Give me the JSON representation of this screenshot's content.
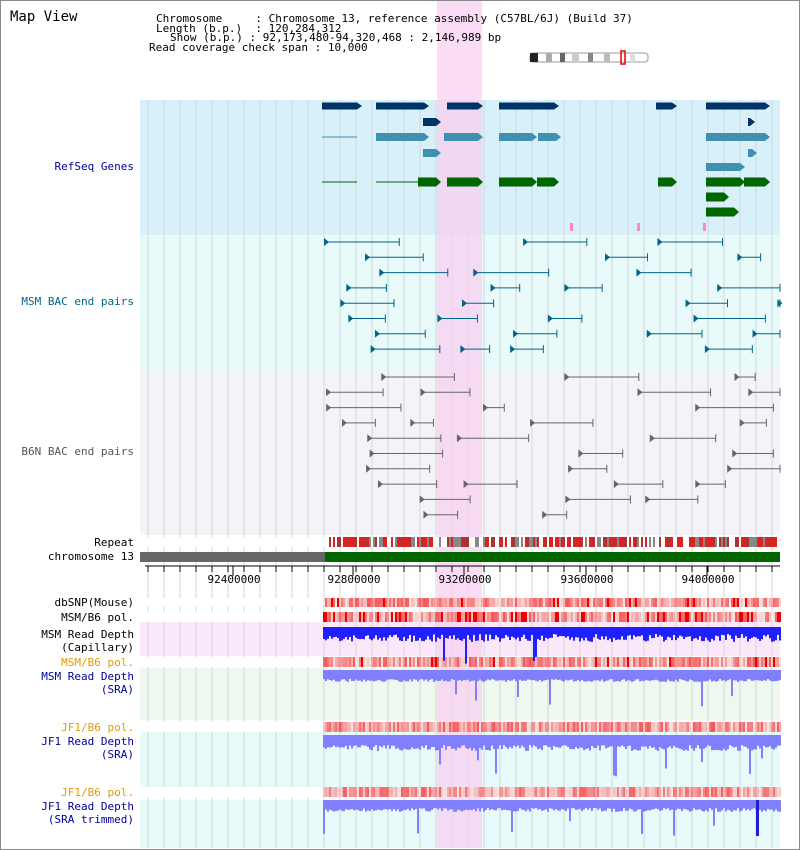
{
  "view_title": "Map View",
  "info": {
    "chromosome_key": "Chromosome",
    "chromosome_value": "Chromosome 13, reference assembly (C57BL/6J) (Build 37)",
    "length_key": "Length (b.p.)",
    "length_value": "120,284,312",
    "show_key": "Show (b.p.)",
    "show_value": "92,173,480-94,320,468 : 2,146,989 bp",
    "coverage_key": "Read coverage check span",
    "coverage_value": "10,000"
  },
  "tracks": {
    "refseq": "RefSeq Genes",
    "msm_bac": "MSM BAC end pairs",
    "b6n_bac": "B6N BAC end pairs",
    "repeat": "Repeat",
    "chromosome": "chromosome 13",
    "dbsnp": "dbSNP(Mouse)",
    "msm_b6_pol_1": "MSM/B6 pol.",
    "msm_depth_cap_1": "MSM Read Depth",
    "msm_depth_cap_2": "(Capillary)",
    "msm_b6_pol_2": "MSM/B6 pol.",
    "msm_depth_sra_1": "MSM Read Depth",
    "msm_depth_sra_2": "(SRA)",
    "jf1_b6_pol_1": "JF1/B6 pol.",
    "jf1_depth_sra_1": "JF1 Read Depth",
    "jf1_depth_sra_2": "(SRA)",
    "jf1_b6_pol_2": "JF1/B6 pol.",
    "jf1_depth_trim_1": "JF1 Read Depth",
    "jf1_depth_trim_2": "(SRA trimmed)"
  },
  "axis": {
    "ticks": [
      "92400000",
      "92800000",
      "93200000",
      "93600000",
      "94000000"
    ]
  },
  "colors": {
    "refseq_bg": "#d8f0fa",
    "msm_bg": "#e8fafa",
    "b6n_bg": "#f4f4f8",
    "highlight": "#f8d0f0",
    "refseq_dark": "#003366",
    "refseq_mid": "#4090b0",
    "refseq_green": "#006600",
    "msm_line": "#006688",
    "b6n_line": "#666666",
    "depth_blue": "#2020ff",
    "depth_light": "#8080ff",
    "label_blue": "#000099",
    "label_teal": "#006688",
    "label_gray": "#555555",
    "label_orange": "#e69900"
  }
}
